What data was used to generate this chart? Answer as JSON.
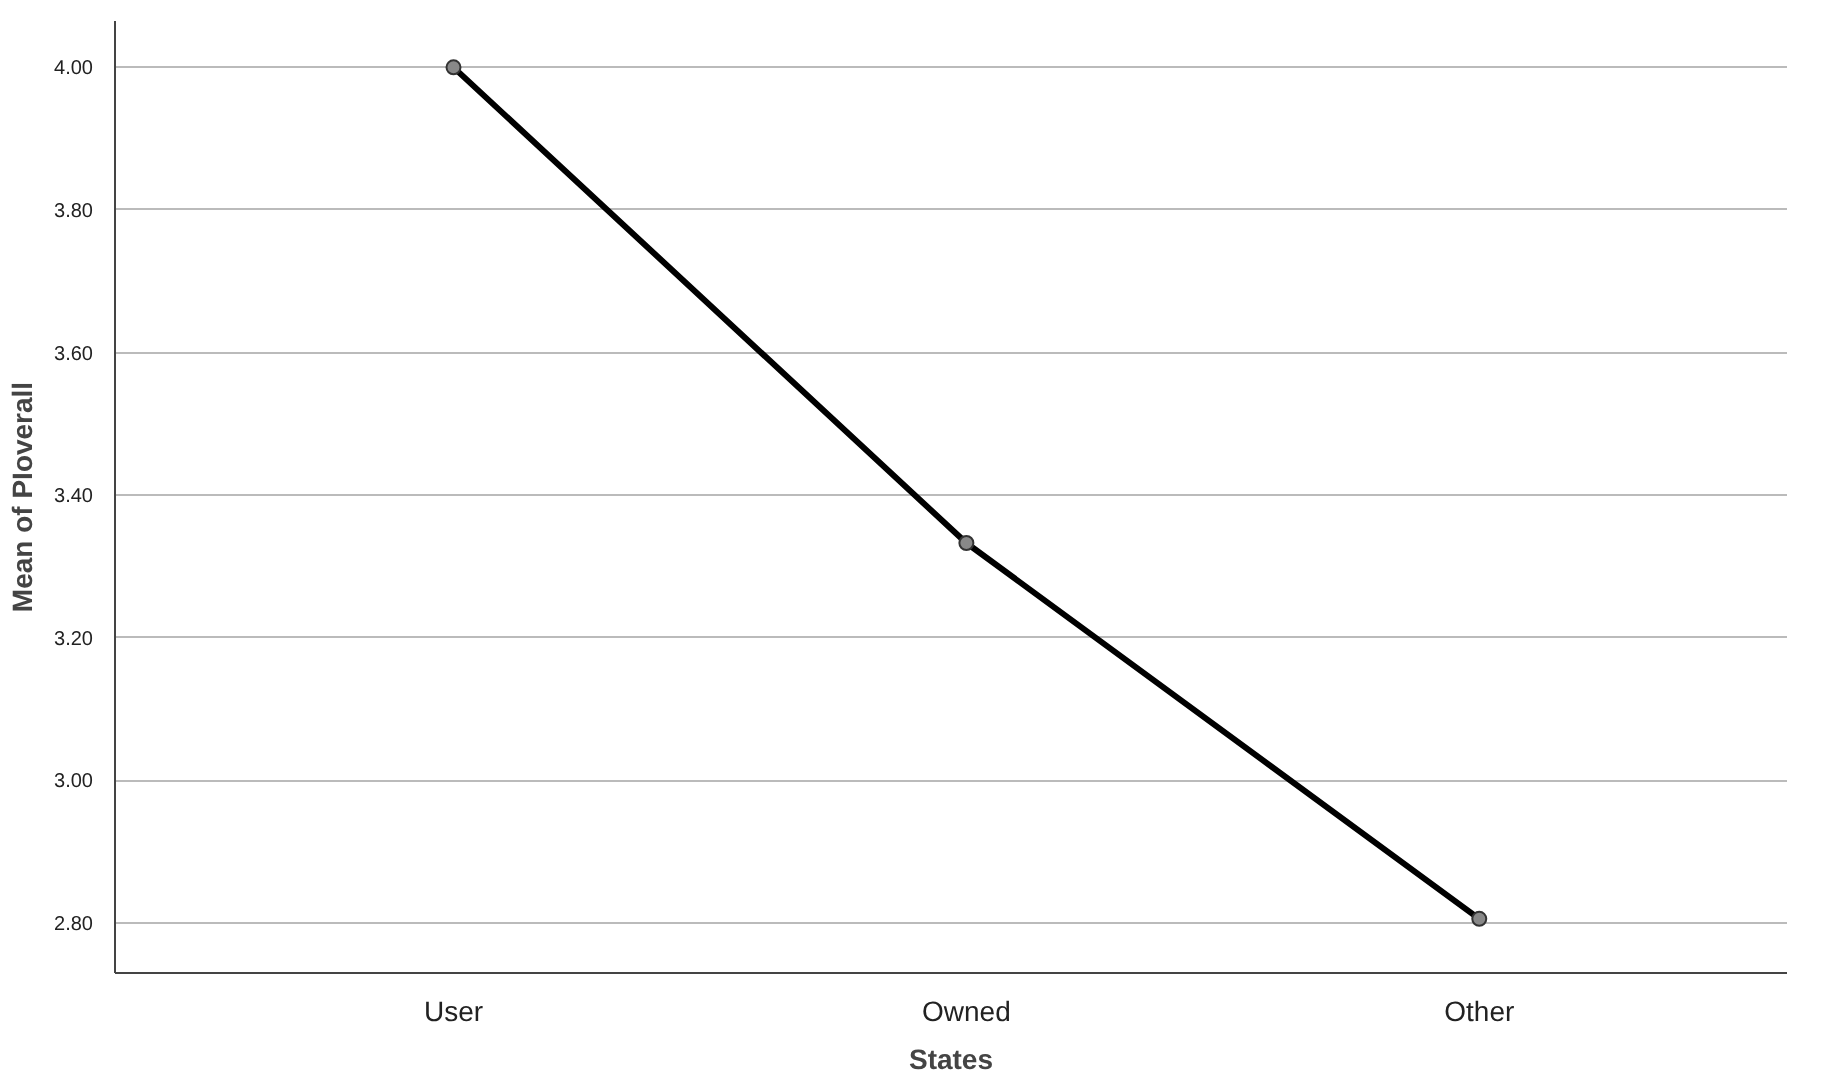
{
  "chart_data": {
    "type": "line",
    "xlabel": "States",
    "ylabel": "Mean of PIoverall",
    "categories": [
      "User",
      "Owned",
      "Other"
    ],
    "series": [
      {
        "color": "#000000",
        "values": [
          4.0,
          3.333,
          2.806
        ]
      }
    ],
    "ylim": [
      2.73,
      4.065
    ],
    "yticks": [
      {
        "value": 2.8,
        "label": "2.80"
      },
      {
        "value": 3.0,
        "label": "3.00"
      },
      {
        "value": 3.2,
        "label": "3.20"
      },
      {
        "value": 3.4,
        "label": "3.40"
      },
      {
        "value": 3.6,
        "label": "3.60"
      },
      {
        "value": 3.8,
        "label": "3.80"
      },
      {
        "value": 4.0,
        "label": "4.00"
      }
    ],
    "grid": "y",
    "marker": "circle",
    "line_style": "solid"
  }
}
